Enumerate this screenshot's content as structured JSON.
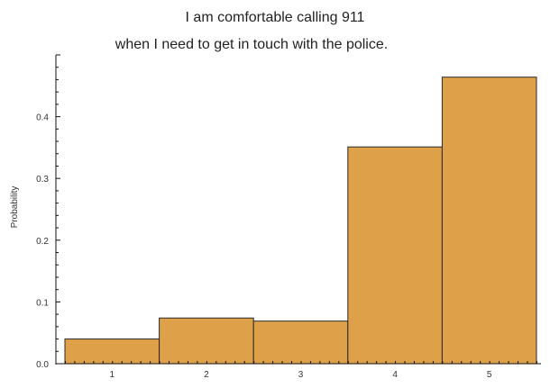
{
  "chart_data": {
    "type": "bar",
    "title": [
      "I am comfortable calling 911",
      "when I need to get in touch with the police."
    ],
    "xlabel": "",
    "ylabel": "Probability",
    "categories": [
      "1",
      "2",
      "3",
      "4",
      "5"
    ],
    "values": [
      0.04,
      0.074,
      0.069,
      0.351,
      0.464
    ],
    "x_ticks": [
      "1",
      "2",
      "3",
      "4",
      "5"
    ],
    "y_ticks": [
      "0.0",
      "0.1",
      "0.2",
      "0.3",
      "0.4"
    ],
    "ylim": [
      0,
      0.5
    ],
    "grid": false,
    "legend": "none",
    "bar_color": "#dea048",
    "bar_edge_color": "#2a2a2a",
    "axis_color": "#111111"
  }
}
